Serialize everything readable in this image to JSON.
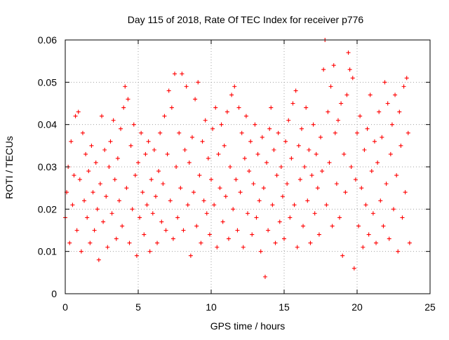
{
  "chart_data": {
    "type": "scatter",
    "title": "Day 115 of 2018, Rate Of TEC Index for receiver p776",
    "xlabel": "GPS time / hours",
    "ylabel": "ROTI / TECUs",
    "xlim": [
      0,
      25
    ],
    "ylim": [
      0,
      0.06
    ],
    "x_ticks": [
      0,
      5,
      10,
      15,
      20,
      25
    ],
    "x_tick_labels": [
      "0",
      "5",
      "10",
      "15",
      "20",
      "25"
    ],
    "y_ticks": [
      0,
      0.01,
      0.02,
      0.03,
      0.04,
      0.05,
      0.06
    ],
    "y_tick_labels": [
      "0",
      "0.01",
      "0.02",
      "0.03",
      "0.04",
      "0.05",
      "0.06"
    ],
    "grid": true,
    "marker": "plus",
    "color": "#ff0000",
    "series": [
      {
        "points": [
          [
            0.0,
            0.018
          ],
          [
            0.1,
            0.024
          ],
          [
            0.2,
            0.03
          ],
          [
            0.3,
            0.012
          ],
          [
            0.4,
            0.036
          ],
          [
            0.5,
            0.021
          ],
          [
            0.6,
            0.028
          ],
          [
            0.7,
            0.042
          ],
          [
            0.8,
            0.015
          ],
          [
            0.9,
            0.043
          ],
          [
            1.0,
            0.027
          ],
          [
            1.1,
            0.01
          ],
          [
            1.2,
            0.038
          ],
          [
            1.3,
            0.022
          ],
          [
            1.4,
            0.033
          ],
          [
            1.5,
            0.018
          ],
          [
            1.6,
            0.029
          ],
          [
            1.7,
            0.012
          ],
          [
            1.8,
            0.035
          ],
          [
            1.9,
            0.024
          ],
          [
            2.0,
            0.015
          ],
          [
            2.1,
            0.031
          ],
          [
            2.2,
            0.02
          ],
          [
            2.3,
            0.008
          ],
          [
            2.4,
            0.026
          ],
          [
            2.5,
            0.042
          ],
          [
            2.6,
            0.017
          ],
          [
            2.7,
            0.034
          ],
          [
            2.8,
            0.023
          ],
          [
            2.9,
            0.011
          ],
          [
            3.0,
            0.03
          ],
          [
            3.1,
            0.036
          ],
          [
            3.2,
            0.019
          ],
          [
            3.3,
            0.041
          ],
          [
            3.4,
            0.027
          ],
          [
            3.5,
            0.013
          ],
          [
            3.6,
            0.032
          ],
          [
            3.7,
            0.022
          ],
          [
            3.8,
            0.039
          ],
          [
            3.9,
            0.016
          ],
          [
            4.0,
            0.044
          ],
          [
            4.1,
            0.049
          ],
          [
            4.2,
            0.025
          ],
          [
            4.3,
            0.046
          ],
          [
            4.4,
            0.012
          ],
          [
            4.5,
            0.035
          ],
          [
            4.6,
            0.02
          ],
          [
            4.7,
            0.04
          ],
          [
            4.8,
            0.028
          ],
          [
            4.9,
            0.009
          ],
          [
            5.0,
            0.031
          ],
          [
            5.1,
            0.018
          ],
          [
            5.2,
            0.038
          ],
          [
            5.3,
            0.024
          ],
          [
            5.4,
            0.014
          ],
          [
            5.5,
            0.033
          ],
          [
            5.6,
            0.021
          ],
          [
            5.7,
            0.036
          ],
          [
            5.8,
            0.01
          ],
          [
            5.9,
            0.027
          ],
          [
            6.0,
            0.019
          ],
          [
            6.1,
            0.034
          ],
          [
            6.2,
            0.023
          ],
          [
            6.3,
            0.012
          ],
          [
            6.4,
            0.029
          ],
          [
            6.5,
            0.038
          ],
          [
            6.6,
            0.017
          ],
          [
            6.7,
            0.026
          ],
          [
            6.8,
            0.042
          ],
          [
            6.9,
            0.015
          ],
          [
            7.0,
            0.033
          ],
          [
            7.1,
            0.048
          ],
          [
            7.2,
            0.022
          ],
          [
            7.3,
            0.044
          ],
          [
            7.4,
            0.013
          ],
          [
            7.5,
            0.052
          ],
          [
            7.6,
            0.03
          ],
          [
            7.7,
            0.018
          ],
          [
            7.8,
            0.038
          ],
          [
            7.9,
            0.025
          ],
          [
            8.0,
            0.052
          ],
          [
            8.1,
            0.015
          ],
          [
            8.2,
            0.034
          ],
          [
            8.3,
            0.049
          ],
          [
            8.4,
            0.021
          ],
          [
            8.5,
            0.031
          ],
          [
            8.6,
            0.009
          ],
          [
            8.7,
            0.037
          ],
          [
            8.8,
            0.024
          ],
          [
            8.9,
            0.046
          ],
          [
            9.0,
            0.016
          ],
          [
            9.1,
            0.05
          ],
          [
            9.2,
            0.028
          ],
          [
            9.3,
            0.012
          ],
          [
            9.4,
            0.036
          ],
          [
            9.5,
            0.022
          ],
          [
            9.6,
            0.041
          ],
          [
            9.7,
            0.019
          ],
          [
            9.8,
            0.032
          ],
          [
            9.9,
            0.014
          ],
          [
            10.0,
            0.027
          ],
          [
            10.1,
            0.039
          ],
          [
            10.2,
            0.021
          ],
          [
            10.3,
            0.044
          ],
          [
            10.4,
            0.011
          ],
          [
            10.5,
            0.033
          ],
          [
            10.6,
            0.025
          ],
          [
            10.7,
            0.04
          ],
          [
            10.8,
            0.017
          ],
          [
            10.9,
            0.035
          ],
          [
            11.0,
            0.023
          ],
          [
            11.1,
            0.043
          ],
          [
            11.2,
            0.013
          ],
          [
            11.3,
            0.03
          ],
          [
            11.4,
            0.047
          ],
          [
            11.5,
            0.02
          ],
          [
            11.6,
            0.049
          ],
          [
            11.7,
            0.027
          ],
          [
            11.8,
            0.015
          ],
          [
            11.9,
            0.044
          ],
          [
            12.0,
            0.024
          ],
          [
            12.1,
            0.038
          ],
          [
            12.2,
            0.011
          ],
          [
            12.3,
            0.032
          ],
          [
            12.4,
            0.042
          ],
          [
            12.5,
            0.019
          ],
          [
            12.6,
            0.029
          ],
          [
            12.7,
            0.036
          ],
          [
            12.8,
            0.014
          ],
          [
            12.9,
            0.026
          ],
          [
            13.0,
            0.04
          ],
          [
            13.1,
            0.018
          ],
          [
            13.2,
            0.033
          ],
          [
            13.3,
            0.022
          ],
          [
            13.4,
            0.01
          ],
          [
            13.5,
            0.037
          ],
          [
            13.6,
            0.025
          ],
          [
            13.7,
            0.004
          ],
          [
            13.8,
            0.031
          ],
          [
            13.9,
            0.015
          ],
          [
            14.0,
            0.039
          ],
          [
            14.1,
            0.044
          ],
          [
            14.2,
            0.021
          ],
          [
            14.3,
            0.034
          ],
          [
            14.4,
            0.012
          ],
          [
            14.5,
            0.028
          ],
          [
            14.6,
            0.038
          ],
          [
            14.7,
            0.017
          ],
          [
            14.8,
            0.03
          ],
          [
            14.9,
            0.023
          ],
          [
            15.0,
            0.013
          ],
          [
            15.1,
            0.036
          ],
          [
            15.2,
            0.026
          ],
          [
            15.3,
            0.041
          ],
          [
            15.4,
            0.018
          ],
          [
            15.5,
            0.032
          ],
          [
            15.6,
            0.045
          ],
          [
            15.7,
            0.021
          ],
          [
            15.8,
            0.048
          ],
          [
            15.9,
            0.011
          ],
          [
            16.0,
            0.035
          ],
          [
            16.1,
            0.027
          ],
          [
            16.2,
            0.039
          ],
          [
            16.3,
            0.016
          ],
          [
            16.4,
            0.03
          ],
          [
            16.5,
            0.044
          ],
          [
            16.6,
            0.022
          ],
          [
            16.7,
            0.034
          ],
          [
            16.8,
            0.012
          ],
          [
            16.9,
            0.028
          ],
          [
            17.0,
            0.04
          ],
          [
            17.1,
            0.019
          ],
          [
            17.2,
            0.033
          ],
          [
            17.3,
            0.025
          ],
          [
            17.4,
            0.014
          ],
          [
            17.5,
            0.037
          ],
          [
            17.6,
            0.029
          ],
          [
            17.7,
            0.053
          ],
          [
            17.8,
            0.06
          ],
          [
            17.9,
            0.021
          ],
          [
            18.0,
            0.043
          ],
          [
            18.1,
            0.031
          ],
          [
            18.2,
            0.049
          ],
          [
            18.3,
            0.016
          ],
          [
            18.4,
            0.054
          ],
          [
            18.5,
            0.038
          ],
          [
            18.6,
            0.026
          ],
          [
            18.7,
            0.041
          ],
          [
            18.8,
            0.018
          ],
          [
            18.9,
            0.045
          ],
          [
            19.0,
            0.009
          ],
          [
            19.1,
            0.033
          ],
          [
            19.2,
            0.024
          ],
          [
            19.3,
            0.047
          ],
          [
            19.4,
            0.057
          ],
          [
            19.5,
            0.053
          ],
          [
            19.6,
            0.03
          ],
          [
            19.7,
            0.051
          ],
          [
            19.8,
            0.006
          ],
          [
            19.9,
            0.027
          ],
          [
            20.0,
            0.038
          ],
          [
            20.1,
            0.016
          ],
          [
            20.2,
            0.042
          ],
          [
            20.3,
            0.025
          ],
          [
            20.4,
            0.011
          ],
          [
            20.5,
            0.034
          ],
          [
            20.6,
            0.021
          ],
          [
            20.7,
            0.039
          ],
          [
            20.8,
            0.014
          ],
          [
            20.9,
            0.047
          ],
          [
            21.0,
            0.029
          ],
          [
            21.1,
            0.019
          ],
          [
            21.2,
            0.036
          ],
          [
            21.3,
            0.012
          ],
          [
            21.4,
            0.031
          ],
          [
            21.5,
            0.043
          ],
          [
            21.6,
            0.022
          ],
          [
            21.7,
            0.037
          ],
          [
            21.8,
            0.016
          ],
          [
            21.9,
            0.05
          ],
          [
            22.0,
            0.026
          ],
          [
            22.1,
            0.045
          ],
          [
            22.2,
            0.013
          ],
          [
            22.3,
            0.033
          ],
          [
            22.4,
            0.04
          ],
          [
            22.5,
            0.02
          ],
          [
            22.6,
            0.047
          ],
          [
            22.7,
            0.028
          ],
          [
            22.8,
            0.01
          ],
          [
            22.9,
            0.043
          ],
          [
            23.0,
            0.035
          ],
          [
            23.1,
            0.018
          ],
          [
            23.2,
            0.049
          ],
          [
            23.3,
            0.024
          ],
          [
            23.4,
            0.051
          ],
          [
            23.5,
            0.038
          ],
          [
            23.6,
            0.012
          ]
        ]
      }
    ]
  }
}
